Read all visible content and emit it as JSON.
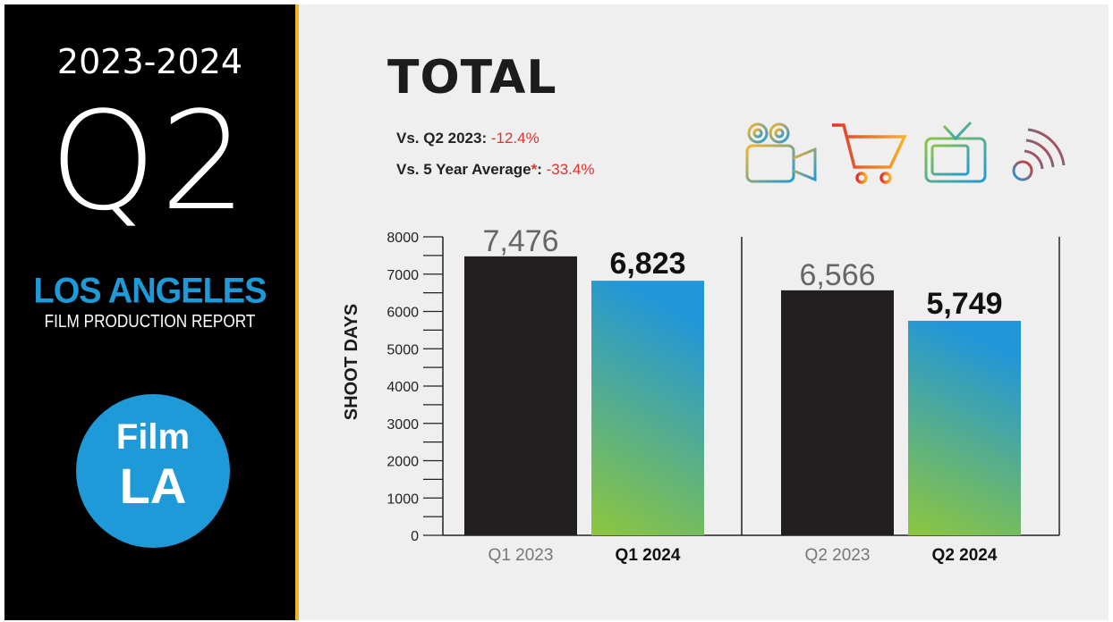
{
  "sidebar": {
    "years": "2023-2024",
    "quarter": "Q2",
    "city": "LOS ANGELES",
    "report": "FILM PRODUCTION REPORT",
    "logo_line1": "Film",
    "logo_line2": "LA"
  },
  "comparisons": {
    "vs_q2_label": "Vs. Q2 2023:",
    "vs_q2_value": "-12.4%",
    "vs_avg_label": "Vs. 5 Year Average",
    "vs_avg_asterisk": "*",
    "vs_avg_colon": ":",
    "vs_avg_value": "-33.4%"
  },
  "icons": [
    "film-camera-icon",
    "shopping-cart-icon",
    "television-icon",
    "broadcast-signal-icon"
  ],
  "colors": {
    "sidebar_bg": "#000000",
    "accent_blue": "#1f9ad8",
    "accent_gold": "#f0b429",
    "negative_red": "#e0312b",
    "bar_dark": "#231f20",
    "gradient_top": "#2196d9",
    "gradient_bottom": "#8cc63f"
  },
  "chart_data": {
    "type": "bar",
    "title": "TOTAL",
    "ylabel": "SHOOT DAYS",
    "xlabel": "",
    "ylim": [
      0,
      8000
    ],
    "yticks": [
      0,
      1000,
      2000,
      3000,
      4000,
      5000,
      6000,
      7000,
      8000
    ],
    "grid": false,
    "groups": [
      {
        "categories": [
          "Q1 2023",
          "Q1 2024"
        ],
        "values": [
          7476,
          6823
        ],
        "labels": [
          "7,476",
          "6,823"
        ]
      },
      {
        "categories": [
          "Q2 2023",
          "Q2 2024"
        ],
        "values": [
          6566,
          5749
        ],
        "labels": [
          "6,566",
          "5,749"
        ]
      }
    ]
  }
}
